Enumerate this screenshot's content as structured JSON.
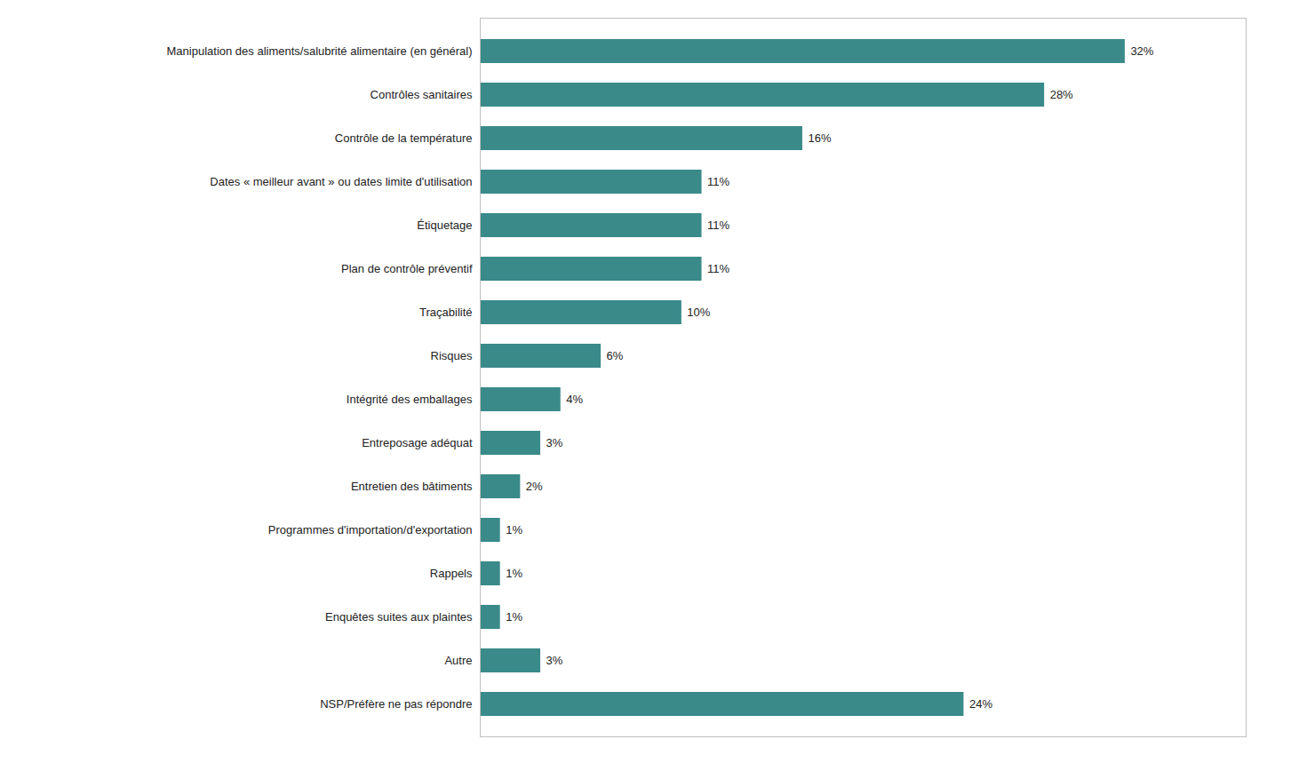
{
  "chart_data": {
    "type": "bar",
    "orientation": "horizontal",
    "categories": [
      "NSP/Préfère ne pas répondre",
      "Autre",
      "Enquêtes suites aux plaintes",
      "Rappels",
      "Programmes d'importation/d'exportation",
      "Entretien des bâtiments",
      "Entreposage adéquat",
      "Intégrité des emballages",
      "Risques",
      "Traçabilité",
      "Plan de contrôle préventif",
      "Étiquetage",
      "Dates « meilleur avant » ou dates limite d'utilisation",
      "Contrôle de la température",
      "Contrôles sanitaires",
      "Manipulation des aliments/salubrité alimentaire (en général)"
    ],
    "values": [
      24,
      3,
      1,
      1,
      1,
      2,
      3,
      4,
      6,
      10,
      11,
      11,
      11,
      16,
      28,
      32
    ],
    "value_labels": [
      "24%",
      "3%",
      "1%",
      "1%",
      "1%",
      "2%",
      "3%",
      "4%",
      "6%",
      "10%",
      "11%",
      "11%",
      "11%",
      "16%",
      "28%",
      "32%"
    ],
    "color": "#3a8a8a",
    "xlim": [
      0,
      38
    ],
    "data_labels": true,
    "tick_labels": "y",
    "grid": false
  }
}
